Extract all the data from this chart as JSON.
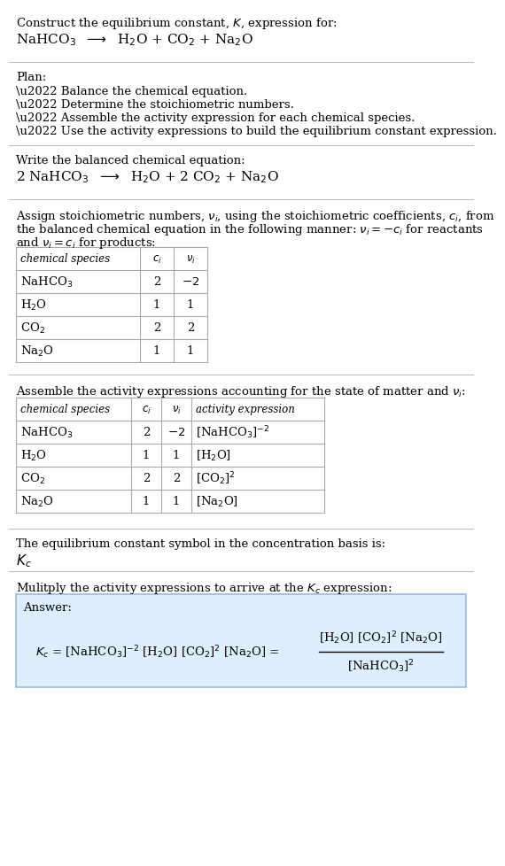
{
  "bg_color": "#ffffff",
  "table_line_color": "#aaaaaa",
  "answer_box_color": "#ddeeff",
  "answer_box_edge": "#99bbdd",
  "text_color": "#000000",
  "divider_color": "#bbbbbb",
  "font_size": 9.5,
  "small_font": 8.5,
  "title_line1": "Construct the equilibrium constant, $K$, expression for:",
  "title_line2": "NaHCO$_3$  $\\longrightarrow$  H$_2$O + CO$_2$ + Na$_2$O",
  "plan_header": "Plan:",
  "plan_items": [
    "\\u2022 Balance the chemical equation.",
    "\\u2022 Determine the stoichiometric numbers.",
    "\\u2022 Assemble the activity expression for each chemical species.",
    "\\u2022 Use the activity expressions to build the equilibrium constant expression."
  ],
  "balanced_header": "Write the balanced chemical equation:",
  "balanced_eq": "2 NaHCO$_3$  $\\longrightarrow$  H$_2$O + 2 CO$_2$ + Na$_2$O",
  "stoich_intro1": "Assign stoichiometric numbers, $\\nu_i$, using the stoichiometric coefficients, $c_i$, from",
  "stoich_intro2": "the balanced chemical equation in the following manner: $\\nu_i = -c_i$ for reactants",
  "stoich_intro3": "and $\\nu_i = c_i$ for products:",
  "t1_headers": [
    "chemical species",
    "$c_i$",
    "$\\nu_i$"
  ],
  "t1_rows": [
    [
      "NaHCO$_3$",
      "2",
      "$-2$"
    ],
    [
      "H$_2$O",
      "1",
      "1"
    ],
    [
      "CO$_2$",
      "2",
      "2"
    ],
    [
      "Na$_2$O",
      "1",
      "1"
    ]
  ],
  "activity_intro": "Assemble the activity expressions accounting for the state of matter and $\\nu_i$:",
  "t2_headers": [
    "chemical species",
    "$c_i$",
    "$\\nu_i$",
    "activity expression"
  ],
  "t2_rows": [
    [
      "NaHCO$_3$",
      "2",
      "$-2$",
      "[NaHCO$_3$]$^{-2}$"
    ],
    [
      "H$_2$O",
      "1",
      "1",
      "[H$_2$O]"
    ],
    [
      "CO$_2$",
      "2",
      "2",
      "[CO$_2$]$^2$"
    ],
    [
      "Na$_2$O",
      "1",
      "1",
      "[Na$_2$O]"
    ]
  ],
  "kc_intro": "The equilibrium constant symbol in the concentration basis is:",
  "kc_symbol": "$K_c$",
  "multiply_intro": "Mulitply the activity expressions to arrive at the $K_c$ expression:",
  "answer_label": "Answer:",
  "eq_lhs": "$K_c$ = [NaHCO$_3$]$^{-2}$ [H$_2$O] [CO$_2$]$^2$ [Na$_2$O] =",
  "frac_num": "[H$_2$O] [CO$_2$]$^2$ [Na$_2$O]",
  "frac_den": "[NaHCO$_3$]$^2$"
}
